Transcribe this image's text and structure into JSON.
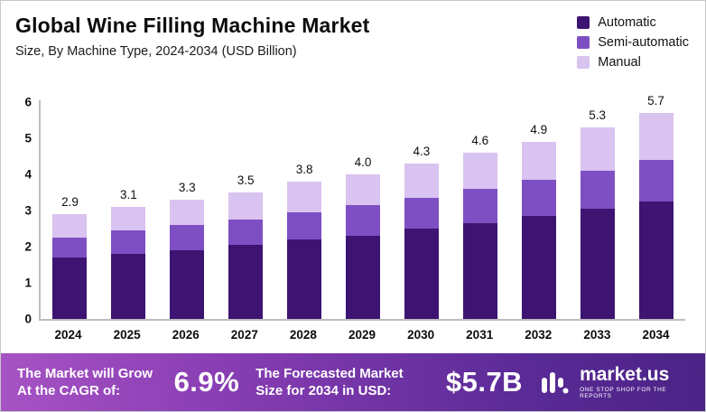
{
  "header": {
    "title": "Global Wine Filling Machine Market",
    "subtitle": "Size, By Machine Type, 2024-2034 (USD Billion)"
  },
  "chart_data": {
    "type": "bar",
    "stacked": true,
    "title": "Global Wine Filling Machine Market",
    "subtitle": "Size, By Machine Type, 2024-2034 (USD Billion)",
    "xlabel": "",
    "ylabel": "USD Billion",
    "ylim": [
      0,
      6
    ],
    "yticks": [
      0,
      1,
      2,
      3,
      4,
      5,
      6
    ],
    "grid": false,
    "legend_position": "top-right",
    "categories": [
      "2024",
      "2025",
      "2026",
      "2027",
      "2028",
      "2029",
      "2030",
      "2031",
      "2032",
      "2033",
      "2034"
    ],
    "series": [
      {
        "name": "Automatic",
        "color": "#3d1472",
        "values": [
          1.7,
          1.8,
          1.9,
          2.05,
          2.2,
          2.3,
          2.5,
          2.65,
          2.85,
          3.05,
          3.25
        ]
      },
      {
        "name": "Semi-automatic",
        "color": "#7e4fc3",
        "values": [
          0.55,
          0.65,
          0.7,
          0.7,
          0.75,
          0.85,
          0.85,
          0.95,
          1.0,
          1.05,
          1.15
        ]
      },
      {
        "name": "Manual",
        "color": "#d9c3f0",
        "values": [
          0.65,
          0.65,
          0.7,
          0.75,
          0.85,
          0.85,
          0.95,
          1.0,
          1.05,
          1.2,
          1.3
        ]
      }
    ],
    "totals": [
      2.9,
      3.1,
      3.3,
      3.5,
      3.8,
      4.0,
      4.3,
      4.6,
      4.9,
      5.3,
      5.7
    ]
  },
  "banner": {
    "cagr_label": "The Market will Grow At the CAGR of:",
    "cagr_value": "6.9%",
    "forecast_label": "The Forecasted Market Size for 2034 in USD:",
    "forecast_value": "$5.7B",
    "logo_text": "market.us",
    "logo_tagline": "ONE STOP SHOP FOR THE REPORTS"
  }
}
